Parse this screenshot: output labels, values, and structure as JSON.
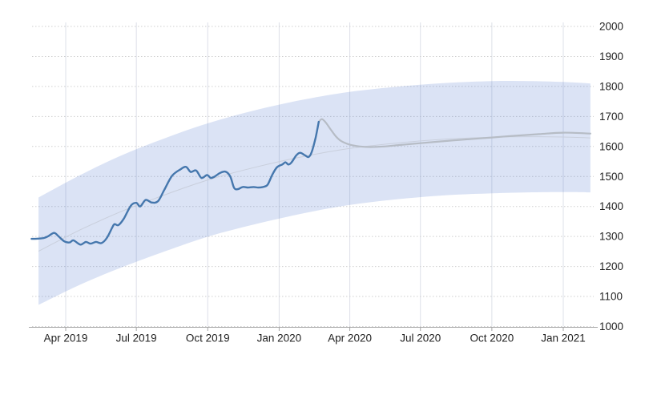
{
  "page": {
    "background": "#ffffff",
    "description": "Line chart of a price series with forecast projection and confidence band"
  },
  "chart_data": {
    "type": "line",
    "title": "",
    "xlabel": "",
    "ylabel": "",
    "ylim": [
      1000,
      2000
    ],
    "xlim": [
      "2019-02-10",
      "2021-02-10"
    ],
    "legend": "none",
    "grid": {
      "horizontal": "dotted",
      "vertical": "solid"
    },
    "x_axis": {
      "position": "bottom",
      "ticks": [
        {
          "label": "Apr 2019",
          "date": "2019-04-01"
        },
        {
          "label": "Jul 2019",
          "date": "2019-07-01"
        },
        {
          "label": "Oct 2019",
          "date": "2019-10-01"
        },
        {
          "label": "Jan 2020",
          "date": "2020-01-01"
        },
        {
          "label": "Apr 2020",
          "date": "2020-04-01"
        },
        {
          "label": "Jul 2020",
          "date": "2020-07-01"
        },
        {
          "label": "Oct 2020",
          "date": "2020-10-01"
        },
        {
          "label": "Jan 2021",
          "date": "2021-01-01"
        }
      ]
    },
    "y_axis": {
      "position": "right",
      "tick_step": 100,
      "ticks": [
        {
          "value": 2000,
          "label": "2000"
        },
        {
          "value": 1900,
          "label": "1900"
        },
        {
          "value": 1800,
          "label": "1800"
        },
        {
          "value": 1700,
          "label": "1700"
        },
        {
          "value": 1600,
          "label": "1600"
        },
        {
          "value": 1500,
          "label": "1500"
        },
        {
          "value": 1400,
          "label": "1400"
        },
        {
          "value": 1300,
          "label": "1300"
        },
        {
          "value": 1200,
          "label": "1200"
        },
        {
          "value": 1100,
          "label": "1100"
        },
        {
          "value": 1000,
          "label": "1000"
        }
      ]
    },
    "colors": {
      "historical_line": "#4577ad",
      "forecast_line": "#b6bcc5",
      "trend_line": "#c9cfdc",
      "confidence_band": "rgba(62,108,200,0.19)",
      "grid_horizontal": "#cfcfcf",
      "grid_vertical": "#dde0e8",
      "axis": "#a6a6a6",
      "tick_text": "#222222"
    },
    "series": [
      {
        "name": "historical",
        "style": "solid",
        "width": 2.4,
        "points": [
          [
            "2019-02-16",
            1292
          ],
          [
            "2019-02-25",
            1293
          ],
          [
            "2019-03-04",
            1295
          ],
          [
            "2019-03-09",
            1300
          ],
          [
            "2019-03-17",
            1312
          ],
          [
            "2019-03-23",
            1300
          ],
          [
            "2019-03-30",
            1284
          ],
          [
            "2019-04-06",
            1280
          ],
          [
            "2019-04-11",
            1287
          ],
          [
            "2019-04-20",
            1273
          ],
          [
            "2019-04-27",
            1282
          ],
          [
            "2019-05-03",
            1276
          ],
          [
            "2019-05-10",
            1282
          ],
          [
            "2019-05-17",
            1278
          ],
          [
            "2019-05-24",
            1295
          ],
          [
            "2019-05-31",
            1330
          ],
          [
            "2019-06-03",
            1341
          ],
          [
            "2019-06-08",
            1338
          ],
          [
            "2019-06-15",
            1360
          ],
          [
            "2019-06-24",
            1403
          ],
          [
            "2019-07-01",
            1412
          ],
          [
            "2019-07-06",
            1400
          ],
          [
            "2019-07-13",
            1422
          ],
          [
            "2019-07-21",
            1413
          ],
          [
            "2019-07-29",
            1418
          ],
          [
            "2019-08-06",
            1455
          ],
          [
            "2019-08-16",
            1502
          ],
          [
            "2019-08-27",
            1524
          ],
          [
            "2019-09-03",
            1532
          ],
          [
            "2019-09-09",
            1515
          ],
          [
            "2019-09-16",
            1520
          ],
          [
            "2019-09-23",
            1495
          ],
          [
            "2019-09-30",
            1505
          ],
          [
            "2019-10-05",
            1495
          ],
          [
            "2019-10-10",
            1500
          ],
          [
            "2019-10-17",
            1512
          ],
          [
            "2019-10-24",
            1516
          ],
          [
            "2019-10-30",
            1500
          ],
          [
            "2019-11-04",
            1462
          ],
          [
            "2019-11-09",
            1458
          ],
          [
            "2019-11-15",
            1465
          ],
          [
            "2019-11-22",
            1463
          ],
          [
            "2019-11-29",
            1465
          ],
          [
            "2019-12-05",
            1463
          ],
          [
            "2019-12-11",
            1465
          ],
          [
            "2019-12-17",
            1472
          ],
          [
            "2019-12-23",
            1505
          ],
          [
            "2019-12-29",
            1530
          ],
          [
            "2020-01-05",
            1540
          ],
          [
            "2020-01-09",
            1547
          ],
          [
            "2020-01-13",
            1540
          ],
          [
            "2020-01-17",
            1547
          ],
          [
            "2020-01-23",
            1570
          ],
          [
            "2020-01-28",
            1579
          ],
          [
            "2020-02-03",
            1571
          ],
          [
            "2020-02-08",
            1565
          ],
          [
            "2020-02-12",
            1582
          ],
          [
            "2020-02-17",
            1630
          ],
          [
            "2020-02-21",
            1682
          ]
        ]
      },
      {
        "name": "forecast",
        "style": "solid",
        "width": 2.2,
        "points": [
          [
            "2020-02-21",
            1682
          ],
          [
            "2020-02-25",
            1691
          ],
          [
            "2020-03-01",
            1680
          ],
          [
            "2020-03-07",
            1658
          ],
          [
            "2020-03-14",
            1634
          ],
          [
            "2020-03-21",
            1618
          ],
          [
            "2020-04-01",
            1606
          ],
          [
            "2020-04-14",
            1600
          ],
          [
            "2020-04-28",
            1598
          ],
          [
            "2020-05-15",
            1600
          ],
          [
            "2020-06-05",
            1605
          ],
          [
            "2020-07-01",
            1611
          ],
          [
            "2020-08-01",
            1618
          ],
          [
            "2020-09-01",
            1624
          ],
          [
            "2020-10-01",
            1630
          ],
          [
            "2020-11-01",
            1636
          ],
          [
            "2020-12-01",
            1641
          ],
          [
            "2021-01-01",
            1646
          ],
          [
            "2021-02-05",
            1643
          ]
        ]
      },
      {
        "name": "confidence-band",
        "style": "band",
        "points_lower_upper": [
          [
            "2019-02-25",
            1072,
            1430
          ],
          [
            "2019-04-20",
            1140,
            1505
          ],
          [
            "2019-06-10",
            1195,
            1568
          ],
          [
            "2019-08-01",
            1245,
            1622
          ],
          [
            "2019-10-02",
            1300,
            1678
          ],
          [
            "2019-12-03",
            1342,
            1722
          ],
          [
            "2020-02-03",
            1378,
            1757
          ],
          [
            "2020-04-01",
            1405,
            1782
          ],
          [
            "2020-06-05",
            1425,
            1800
          ],
          [
            "2020-08-06",
            1438,
            1812
          ],
          [
            "2020-10-02",
            1444,
            1818
          ],
          [
            "2020-11-17",
            1447,
            1818
          ],
          [
            "2021-01-01",
            1448,
            1815
          ],
          [
            "2021-02-05",
            1447,
            1810
          ]
        ]
      },
      {
        "name": "trend-centerline",
        "style": "thin",
        "width": 1,
        "derived": "band-midpoint"
      }
    ]
  }
}
